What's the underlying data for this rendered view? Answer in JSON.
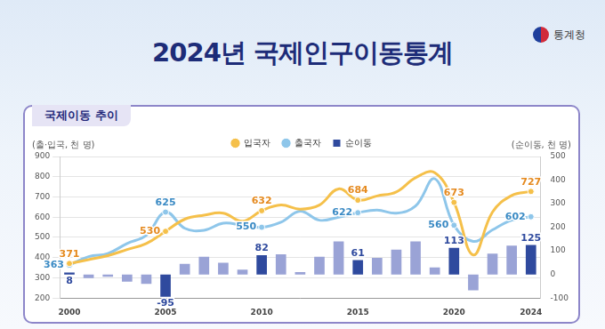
{
  "chart_data": {
    "type": "bar",
    "title": "2024년 국제인구이동통계",
    "subtitle": "국제이동 추이",
    "source": "통계청",
    "y_label": "(출·입국, 천 명)",
    "y2_label": "(순이동, 천 명)",
    "categories": [
      "2000",
      null,
      null,
      null,
      null,
      "2005",
      null,
      null,
      null,
      null,
      "2010",
      null,
      null,
      null,
      null,
      "2015",
      null,
      null,
      null,
      null,
      "2020",
      null,
      null,
      null,
      "2024"
    ],
    "series": [
      {
        "name": "순이동",
        "type": "bar",
        "axis": "y2",
        "colors": [
          "#2f4a9e",
          "#9aa3d6",
          "#9aa3d6",
          "#9aa3d6",
          "#9aa3d6",
          "#2f4a9e",
          "#9aa3d6",
          "#9aa3d6",
          "#9aa3d6",
          "#9aa3d6",
          "#2f4a9e",
          "#9aa3d6",
          "#9aa3d6",
          "#9aa3d6",
          "#9aa3d6",
          "#2f4a9e",
          "#9aa3d6",
          "#9aa3d6",
          "#9aa3d6",
          "#9aa3d6",
          "#2f4a9e",
          "#9aa3d6",
          "#9aa3d6",
          "#9aa3d6",
          "#2f4a9e"
        ],
        "values": [
          8,
          -15,
          -10,
          -30,
          -40,
          -95,
          45,
          75,
          50,
          20,
          82,
          85,
          10,
          75,
          140,
          61,
          70,
          105,
          140,
          30,
          113,
          -67,
          88,
          122,
          125
        ],
        "value_labels": [
          "8",
          null,
          null,
          null,
          null,
          "-95",
          null,
          null,
          null,
          null,
          "82",
          null,
          null,
          null,
          null,
          "61",
          null,
          null,
          null,
          null,
          "113",
          null,
          null,
          null,
          "125"
        ]
      },
      {
        "name": "입국자",
        "type": "line",
        "color": "#f5c04a",
        "marker": "circle",
        "values": [
          371,
          390,
          410,
          440,
          470,
          530,
          590,
          610,
          620,
          580,
          632,
          660,
          640,
          660,
          740,
          684,
          705,
          725,
          795,
          820,
          673,
          413,
          625,
          707,
          727
        ],
        "value_labels": [
          "371",
          null,
          null,
          null,
          null,
          "530",
          null,
          null,
          null,
          null,
          "632",
          null,
          null,
          null,
          null,
          "684",
          null,
          null,
          null,
          null,
          "673",
          null,
          null,
          null,
          "727"
        ]
      },
      {
        "name": "출국자",
        "type": "line",
        "color": "#8ec6ea",
        "marker": "circle",
        "values": [
          363,
          405,
          420,
          470,
          510,
          625,
          545,
          535,
          570,
          560,
          550,
          575,
          630,
          585,
          600,
          622,
          635,
          620,
          655,
          790,
          560,
          480,
          537,
          585,
          602
        ],
        "value_labels": [
          "363",
          null,
          null,
          null,
          null,
          "625",
          null,
          null,
          null,
          null,
          "550",
          null,
          null,
          null,
          null,
          "622",
          null,
          null,
          null,
          null,
          "560",
          null,
          null,
          null,
          "602"
        ]
      }
    ],
    "ylim": [
      200,
      900
    ],
    "yticks": [
      200,
      300,
      400,
      500,
      600,
      700,
      800,
      900
    ],
    "y2lim": [
      -100,
      500
    ],
    "y2ticks": [
      -100,
      0,
      100,
      200,
      300,
      400,
      500
    ],
    "grid": true,
    "legend": "top",
    "data_labels": true
  }
}
